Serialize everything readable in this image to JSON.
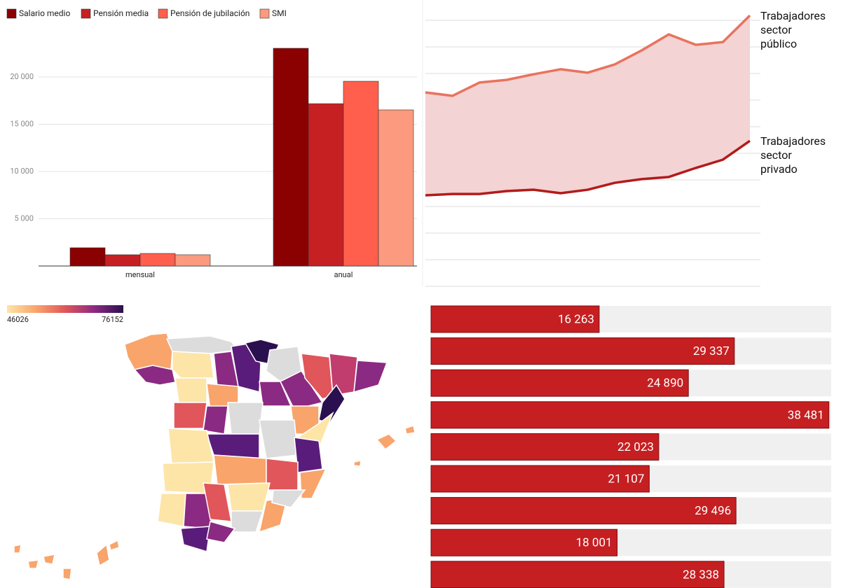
{
  "chart_data": [
    {
      "type": "bar",
      "categories": [
        "mensual",
        "anual"
      ],
      "series": [
        {
          "name": "Salario medio",
          "color": "#8b0000",
          "values": [
            1930,
            23040
          ]
        },
        {
          "name": "Pensión media",
          "color": "#c62023",
          "values": [
            1190,
            17180
          ]
        },
        {
          "name": "Pensión de jubilación",
          "color": "#ff5f4c",
          "values": [
            1330,
            19550
          ]
        },
        {
          "name": "SMI",
          "color": "#fb9a7e",
          "values": [
            1190,
            16520
          ]
        }
      ],
      "ylim": [
        0,
        26000
      ],
      "yticks": [
        {
          "value": 5000,
          "label": "5 000"
        },
        {
          "value": 10000,
          "label": "10 000"
        },
        {
          "value": 15000,
          "label": "15 000"
        },
        {
          "value": 20000,
          "label": "20 000"
        }
      ],
      "grid": true
    },
    {
      "type": "area",
      "series": [
        {
          "name": "Trabajadores sector público",
          "color": "#e8735e",
          "values": [
            7.29,
            7.16,
            7.66,
            7.76,
            7.97,
            8.16,
            8.03,
            8.34,
            8.87,
            9.47,
            9.08,
            9.18,
            10.18
          ]
        },
        {
          "name": "Trabajadores sector privado",
          "color": "#b31b1b",
          "values": [
            3.42,
            3.47,
            3.47,
            3.58,
            3.63,
            3.5,
            3.63,
            3.89,
            4.03,
            4.11,
            4.45,
            4.76,
            5.47
          ]
        }
      ],
      "fill": "#f3d3d3",
      "ylim": [
        0,
        10.5
      ],
      "yticks": [
        0,
        1,
        2,
        3,
        4,
        5,
        6,
        7,
        8,
        9,
        10
      ],
      "grid": true
    },
    {
      "type": "map",
      "colorbar": {
        "min": 46026,
        "max": 76152,
        "colors": [
          "#fde5a8",
          "#f9a46b",
          "#e0565a",
          "#8b2a82",
          "#2b1050"
        ]
      }
    },
    {
      "type": "barh",
      "values": [
        16263,
        29337,
        24890,
        38481,
        22023,
        21107,
        29496,
        18001,
        28338
      ],
      "value_labels": [
        "16 263",
        "29 337",
        "24 890",
        "38 481",
        "22 023",
        "21 107",
        "29 496",
        "18 001",
        "28 338"
      ],
      "color": "#c51f22",
      "xlim": [
        0,
        38700
      ]
    }
  ]
}
